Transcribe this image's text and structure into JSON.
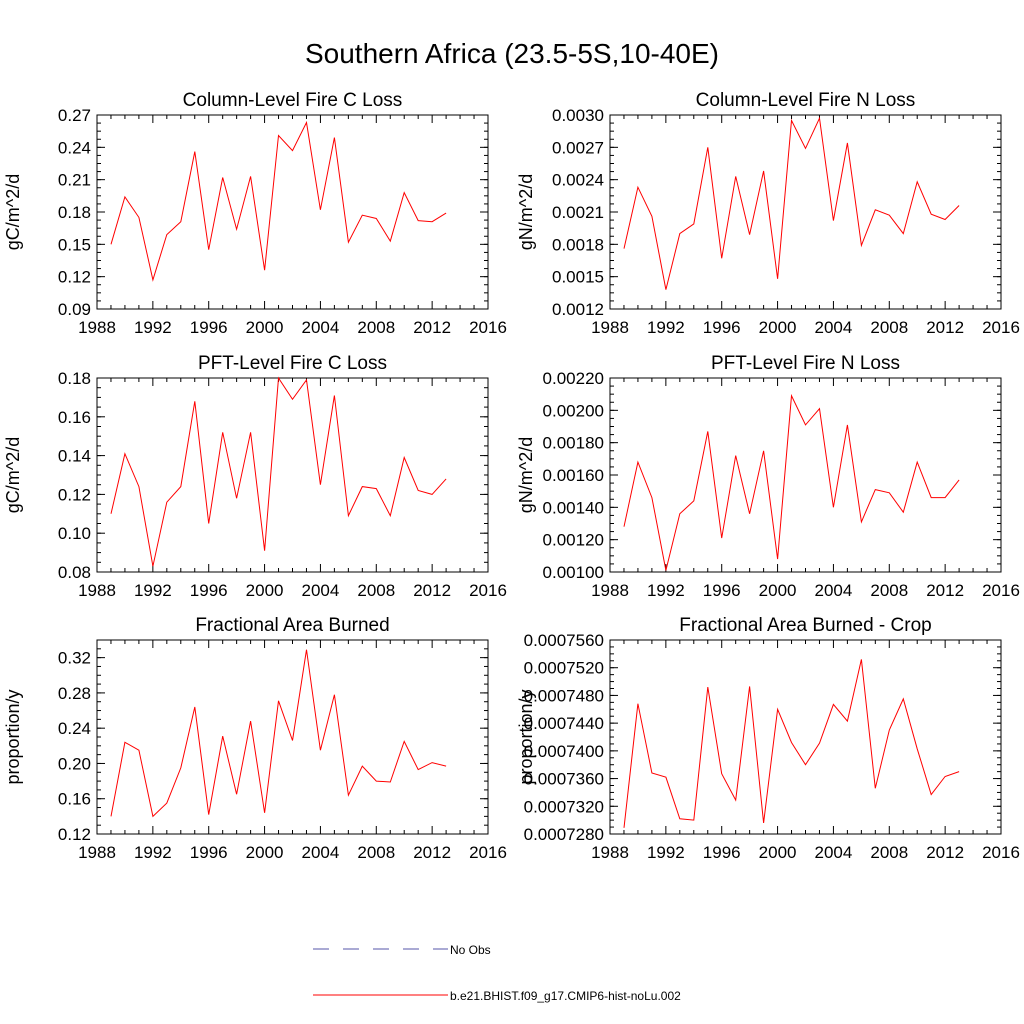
{
  "title": "Southern Africa (23.5-5S,10-40E)",
  "legend": {
    "obs_label": "No Obs",
    "model_label": "b.e21.BHIST.f09_g17.CMIP6-hist-noLu.002",
    "obs_color": "#5555aa",
    "model_color": "#ff0000"
  },
  "years": [
    1989,
    1990,
    1991,
    1992,
    1993,
    1994,
    1995,
    1996,
    1997,
    1998,
    1999,
    2000,
    2001,
    2002,
    2003,
    2004,
    2005,
    2006,
    2007,
    2008,
    2009,
    2010,
    2011,
    2012,
    2013
  ],
  "chart_data": [
    {
      "type": "line",
      "title": "Column-Level Fire C Loss",
      "ylabel": "gC/m^2/d",
      "xlim": [
        1988,
        2016
      ],
      "ylim": [
        0.09,
        0.27
      ],
      "xticks": [
        "1988",
        "1992",
        "1996",
        "2000",
        "2004",
        "2008",
        "2012",
        "2016"
      ],
      "yticks": [
        "0.09",
        "0.12",
        "0.15",
        "0.18",
        "0.21",
        "0.24",
        "0.27"
      ],
      "series": [
        {
          "values": [
            0.15,
            0.194,
            0.175,
            0.117,
            0.159,
            0.171,
            0.236,
            0.145,
            0.212,
            0.164,
            0.213,
            0.126,
            0.251,
            0.237,
            0.263,
            0.182,
            0.249,
            0.152,
            0.177,
            0.174,
            0.153,
            0.198,
            0.172,
            0.171,
            0.179
          ]
        }
      ]
    },
    {
      "type": "line",
      "title": "Column-Level Fire N Loss",
      "ylabel": "gN/m^2/d",
      "xlim": [
        1988,
        2016
      ],
      "ylim": [
        0.0012,
        0.003
      ],
      "xticks": [
        "1988",
        "1992",
        "1996",
        "2000",
        "2004",
        "2008",
        "2012",
        "2016"
      ],
      "yticks": [
        "0.0012",
        "0.0015",
        "0.0018",
        "0.0021",
        "0.0024",
        "0.0027",
        "0.0030"
      ],
      "series": [
        {
          "values": [
            0.00176,
            0.00233,
            0.00206,
            0.00138,
            0.0019,
            0.00199,
            0.0027,
            0.00167,
            0.00243,
            0.00189,
            0.00248,
            0.00148,
            0.00295,
            0.00269,
            0.00297,
            0.00202,
            0.00274,
            0.00179,
            0.00212,
            0.00207,
            0.0019,
            0.00238,
            0.00208,
            0.00203,
            0.00216
          ]
        }
      ]
    },
    {
      "type": "line",
      "title": "PFT-Level Fire C Loss",
      "ylabel": "gC/m^2/d",
      "xlim": [
        1988,
        2016
      ],
      "ylim": [
        0.08,
        0.18
      ],
      "xticks": [
        "1988",
        "1992",
        "1996",
        "2000",
        "2004",
        "2008",
        "2012",
        "2016"
      ],
      "yticks": [
        "0.08",
        "0.10",
        "0.12",
        "0.14",
        "0.16",
        "0.18"
      ],
      "series": [
        {
          "values": [
            0.11,
            0.141,
            0.124,
            0.083,
            0.116,
            0.124,
            0.168,
            0.105,
            0.152,
            0.118,
            0.152,
            0.091,
            0.18,
            0.169,
            0.179,
            0.125,
            0.171,
            0.109,
            0.124,
            0.123,
            0.109,
            0.139,
            0.122,
            0.12,
            0.128
          ]
        }
      ]
    },
    {
      "type": "line",
      "title": "PFT-Level Fire N Loss",
      "ylabel": "gN/m^2/d",
      "xlim": [
        1988,
        2016
      ],
      "ylim": [
        0.001,
        0.0022
      ],
      "xticks": [
        "1988",
        "1992",
        "1996",
        "2000",
        "2004",
        "2008",
        "2012",
        "2016"
      ],
      "yticks": [
        "0.00100",
        "0.00120",
        "0.00140",
        "0.00160",
        "0.00180",
        "0.00200",
        "0.00220"
      ],
      "series": [
        {
          "values": [
            0.00128,
            0.00168,
            0.00146,
            0.00101,
            0.00136,
            0.00144,
            0.00187,
            0.00121,
            0.00172,
            0.00136,
            0.00175,
            0.00108,
            0.00209,
            0.00191,
            0.00201,
            0.0014,
            0.00191,
            0.00131,
            0.00151,
            0.00149,
            0.00137,
            0.00168,
            0.00146,
            0.00146,
            0.00157
          ]
        }
      ]
    },
    {
      "type": "line",
      "title": "Fractional Area Burned",
      "ylabel": "proportion/y",
      "xlim": [
        1988,
        2016
      ],
      "ylim": [
        0.12,
        0.34
      ],
      "xticks": [
        "1988",
        "1992",
        "1996",
        "2000",
        "2004",
        "2008",
        "2012",
        "2016"
      ],
      "yticks": [
        "0.12",
        "0.16",
        "0.20",
        "0.24",
        "0.28",
        "0.32"
      ],
      "series": [
        {
          "values": [
            0.14,
            0.224,
            0.215,
            0.14,
            0.155,
            0.195,
            0.264,
            0.142,
            0.231,
            0.165,
            0.248,
            0.144,
            0.271,
            0.226,
            0.329,
            0.215,
            0.278,
            0.164,
            0.197,
            0.18,
            0.179,
            0.225,
            0.193,
            0.201,
            0.197
          ]
        }
      ]
    },
    {
      "type": "line",
      "title": "Fractional Area Burned - Crop",
      "ylabel": "proportion/y",
      "xlim": [
        1988,
        2016
      ],
      "ylim": [
        0.000728,
        0.000756
      ],
      "xticks": [
        "1988",
        "1992",
        "1996",
        "2000",
        "2004",
        "2008",
        "2012",
        "2016"
      ],
      "yticks": [
        "0.0007280",
        "0.0007320",
        "0.0007360",
        "0.0007400",
        "0.0007440",
        "0.0007480",
        "0.0007520",
        "0.0007560"
      ],
      "series": [
        {
          "values": [
            0.0007289,
            0.0007468,
            0.0007368,
            0.0007362,
            0.0007302,
            0.00073,
            0.0007492,
            0.0007367,
            0.0007329,
            0.0007493,
            0.0007296,
            0.000746,
            0.0007412,
            0.000738,
            0.0007411,
            0.0007467,
            0.0007443,
            0.0007532,
            0.0007346,
            0.000743,
            0.0007475,
            0.0007403,
            0.0007337,
            0.0007363,
            0.000737
          ]
        }
      ]
    }
  ]
}
